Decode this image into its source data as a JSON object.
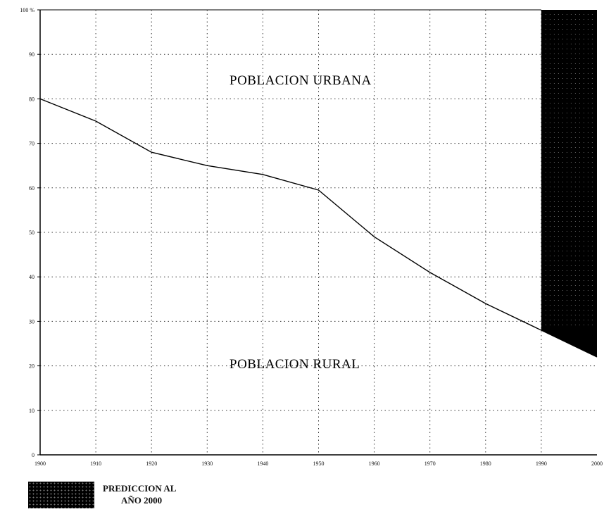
{
  "chart_data": {
    "type": "line",
    "title": "",
    "xlabel": "",
    "ylabel": "",
    "x": [
      1900,
      1910,
      1920,
      1930,
      1940,
      1950,
      1960,
      1970,
      1980,
      1990,
      2000
    ],
    "x_tick_labels": [
      "1900",
      "1910",
      "1920",
      "1930",
      "1940",
      "1950",
      "1960",
      "1970",
      "1980",
      "1990",
      "2000"
    ],
    "y_tick_labels": [
      "0",
      "10",
      "20",
      "30",
      "40",
      "50",
      "60",
      "70",
      "80",
      "90",
      "100 %"
    ],
    "xlim": [
      1900,
      2000
    ],
    "ylim": [
      0,
      100
    ],
    "grid": true,
    "series": [
      {
        "name": "",
        "x": [
          1900,
          1910,
          1920,
          1930,
          1940,
          1950,
          1960,
          1970,
          1980,
          1990,
          2000
        ],
        "values": [
          80,
          75,
          68,
          65,
          63,
          59.5,
          49,
          41,
          34,
          28,
          22
        ]
      }
    ],
    "regions": {
      "upper_label": "POBLACION URBANA",
      "lower_label": "POBLACION RURAL"
    },
    "prediction": {
      "x_start": 1990,
      "x_end": 2000,
      "fill": "#000000",
      "legend_line1": "PREDICCION AL",
      "legend_line2": "AÑO 2000"
    }
  }
}
